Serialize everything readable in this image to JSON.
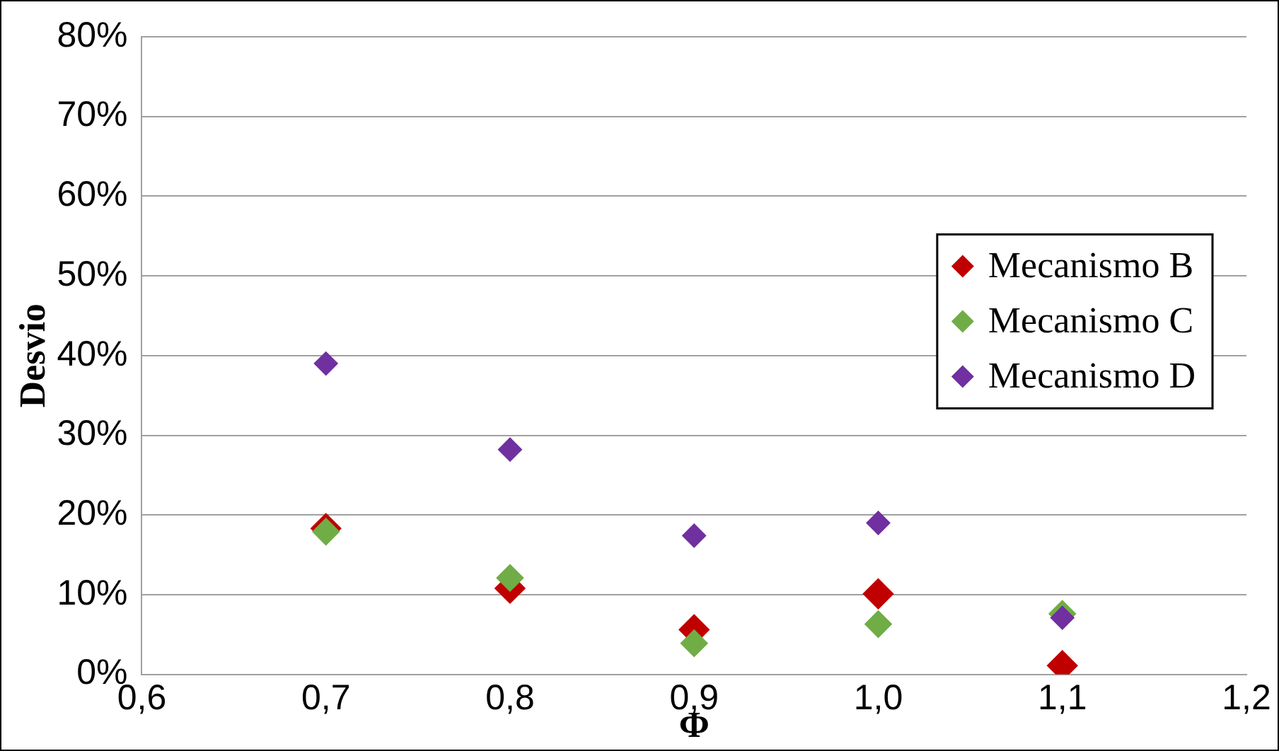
{
  "chart_data": {
    "type": "scatter",
    "xlabel": "Φ",
    "ylabel": "Desvio",
    "x": [
      0.7,
      0.8,
      0.9,
      1.0,
      1.1
    ],
    "series": [
      {
        "name": "Mecanismo B",
        "color": "#c00000",
        "values": [
          18.3,
          10.8,
          5.6,
          10.1,
          1.1
        ]
      },
      {
        "name": "Mecanismo C",
        "color": "#70ad47",
        "values": [
          17.9,
          12.1,
          3.9,
          6.3,
          7.6
        ]
      },
      {
        "name": "Mecanismo D",
        "color": "#7030a0",
        "values": [
          39.0,
          28.2,
          17.4,
          19.0,
          7.1
        ]
      }
    ],
    "xlim": [
      0.6,
      1.2
    ],
    "xticks": [
      {
        "value": 0.6,
        "label": "0,6"
      },
      {
        "value": 0.7,
        "label": "0,7"
      },
      {
        "value": 0.8,
        "label": "0,8"
      },
      {
        "value": 0.9,
        "label": "0,9"
      },
      {
        "value": 1.0,
        "label": "1,0"
      },
      {
        "value": 1.1,
        "label": "1,1"
      },
      {
        "value": 1.2,
        "label": "1,2"
      }
    ],
    "ylim": [
      0,
      80
    ],
    "yticks": [
      {
        "value": 0,
        "label": "0%"
      },
      {
        "value": 10,
        "label": "10%"
      },
      {
        "value": 20,
        "label": "20%"
      },
      {
        "value": 30,
        "label": "30%"
      },
      {
        "value": 40,
        "label": "40%"
      },
      {
        "value": 50,
        "label": "50%"
      },
      {
        "value": 60,
        "label": "60%"
      },
      {
        "value": 70,
        "label": "70%"
      },
      {
        "value": 80,
        "label": "80%"
      }
    ],
    "grid": "y",
    "legend": "right",
    "marker": "diamond"
  }
}
